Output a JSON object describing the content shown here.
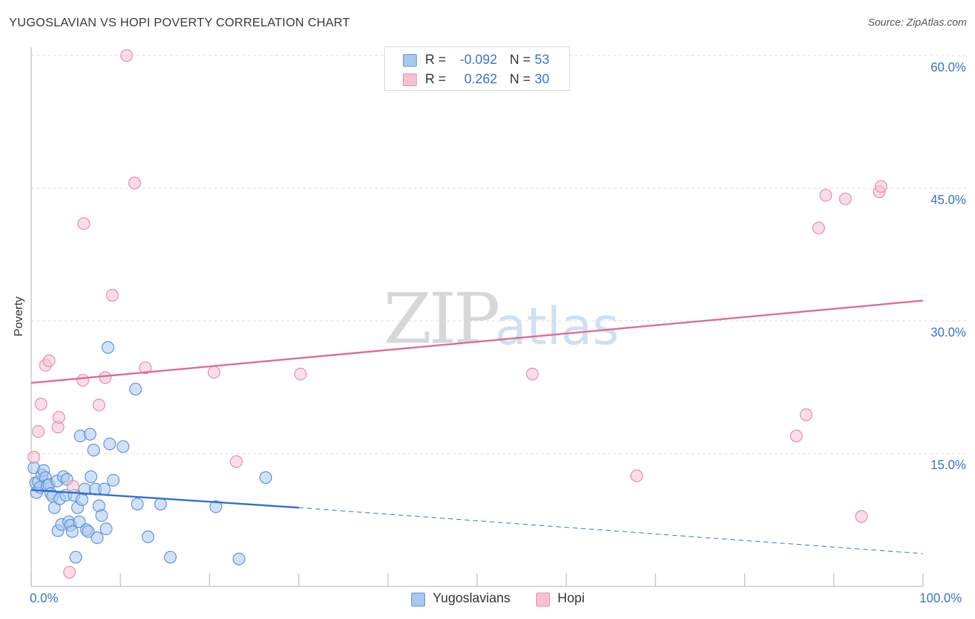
{
  "header": {
    "title": "YUGOSLAVIAN VS HOPI POVERTY CORRELATION CHART",
    "source": "Source: ZipAtlas.com"
  },
  "watermark": {
    "zip": "ZIP",
    "atlas": "atlas"
  },
  "stats": [
    {
      "r_label": "R =",
      "r_value": "-0.092",
      "n_label": "N =",
      "n_value": "53"
    },
    {
      "r_label": "R =",
      "r_value": "0.262",
      "n_label": "N =",
      "n_value": "30"
    }
  ],
  "legend": {
    "items": [
      "Yugoslavians",
      "Hopi"
    ]
  },
  "axes": {
    "y_ticks": [
      "60.0%",
      "45.0%",
      "30.0%",
      "15.0%"
    ],
    "x_ticks": [
      "0.0%",
      "100.0%"
    ]
  },
  "colors": {
    "blue_fill": "#a9c8f0",
    "blue_stroke": "#5b8fd6",
    "blue_line": "#2d6ed1",
    "pink_fill": "#f6c1d1",
    "pink_stroke": "#e48aa8",
    "pink_line": "#e06a94",
    "grid": "#dcdcdc",
    "axis": "#c8c8c8"
  },
  "chart_data": {
    "type": "scatter",
    "title": "YUGOSLAVIAN VS HOPI POVERTY CORRELATION CHART",
    "xlabel": "",
    "ylabel": "Poverty",
    "xlim": [
      0,
      100
    ],
    "ylim": [
      0,
      60
    ],
    "y_gridlines": [
      15,
      30,
      45,
      60
    ],
    "series": [
      {
        "name": "Yugoslavians",
        "r": -0.092,
        "n": 53,
        "trend": {
          "x0": 0,
          "y0": 10.9,
          "x1": 30,
          "y1": 8.9,
          "dashed_to_x": 100,
          "dashed_to_y": 3.7
        },
        "points": [
          [
            0.3,
            13.4
          ],
          [
            0.5,
            11.7
          ],
          [
            0.6,
            10.6
          ],
          [
            0.8,
            11.8
          ],
          [
            1.0,
            11.2
          ],
          [
            1.2,
            12.6
          ],
          [
            1.4,
            13.1
          ],
          [
            1.6,
            12.3
          ],
          [
            1.8,
            11.4
          ],
          [
            2.0,
            11.5
          ],
          [
            2.2,
            10.5
          ],
          [
            2.4,
            10.2
          ],
          [
            2.6,
            8.9
          ],
          [
            2.9,
            11.9
          ],
          [
            3.0,
            6.3
          ],
          [
            3.2,
            9.9
          ],
          [
            3.4,
            7.0
          ],
          [
            3.6,
            12.4
          ],
          [
            3.9,
            10.3
          ],
          [
            4.0,
            12.1
          ],
          [
            4.2,
            7.3
          ],
          [
            4.4,
            6.9
          ],
          [
            4.6,
            6.2
          ],
          [
            4.8,
            10.3
          ],
          [
            5.0,
            3.3
          ],
          [
            5.2,
            8.9
          ],
          [
            5.4,
            7.3
          ],
          [
            5.5,
            17.0
          ],
          [
            5.7,
            9.8
          ],
          [
            6.0,
            11.0
          ],
          [
            6.2,
            6.4
          ],
          [
            6.4,
            6.2
          ],
          [
            6.6,
            17.2
          ],
          [
            6.7,
            12.4
          ],
          [
            7.0,
            15.4
          ],
          [
            7.2,
            11.0
          ],
          [
            7.4,
            5.5
          ],
          [
            7.6,
            9.1
          ],
          [
            7.9,
            8.0
          ],
          [
            8.2,
            11.0
          ],
          [
            8.4,
            6.5
          ],
          [
            8.6,
            27.0
          ],
          [
            8.8,
            16.1
          ],
          [
            9.2,
            12.0
          ],
          [
            10.3,
            15.8
          ],
          [
            11.7,
            22.3
          ],
          [
            11.9,
            9.3
          ],
          [
            13.1,
            5.6
          ],
          [
            14.5,
            9.3
          ],
          [
            15.6,
            3.3
          ],
          [
            20.7,
            9.0
          ],
          [
            23.3,
            3.1
          ],
          [
            26.3,
            12.3
          ]
        ]
      },
      {
        "name": "Hopi",
        "r": 0.262,
        "n": 30,
        "trend": {
          "x0": 0,
          "y0": 23.0,
          "x1": 100,
          "y1": 32.3
        },
        "points": [
          [
            0.3,
            14.6
          ],
          [
            0.8,
            17.5
          ],
          [
            1.1,
            20.6
          ],
          [
            1.6,
            25.0
          ],
          [
            2.0,
            25.5
          ],
          [
            3.0,
            18.0
          ],
          [
            3.1,
            19.1
          ],
          [
            4.3,
            1.6
          ],
          [
            4.7,
            11.3
          ],
          [
            5.8,
            23.3
          ],
          [
            5.9,
            41.0
          ],
          [
            7.6,
            20.5
          ],
          [
            8.3,
            23.6
          ],
          [
            9.1,
            32.9
          ],
          [
            10.7,
            60.0
          ],
          [
            11.6,
            45.6
          ],
          [
            12.8,
            24.7
          ],
          [
            20.5,
            24.2
          ],
          [
            23.0,
            14.1
          ],
          [
            30.2,
            24.0
          ],
          [
            56.2,
            24.0
          ],
          [
            67.9,
            12.5
          ],
          [
            85.8,
            17.0
          ],
          [
            86.9,
            19.4
          ],
          [
            88.3,
            40.5
          ],
          [
            89.1,
            44.2
          ],
          [
            91.3,
            43.8
          ],
          [
            93.1,
            7.9
          ],
          [
            95.1,
            44.6
          ],
          [
            95.3,
            45.2
          ]
        ]
      }
    ]
  }
}
